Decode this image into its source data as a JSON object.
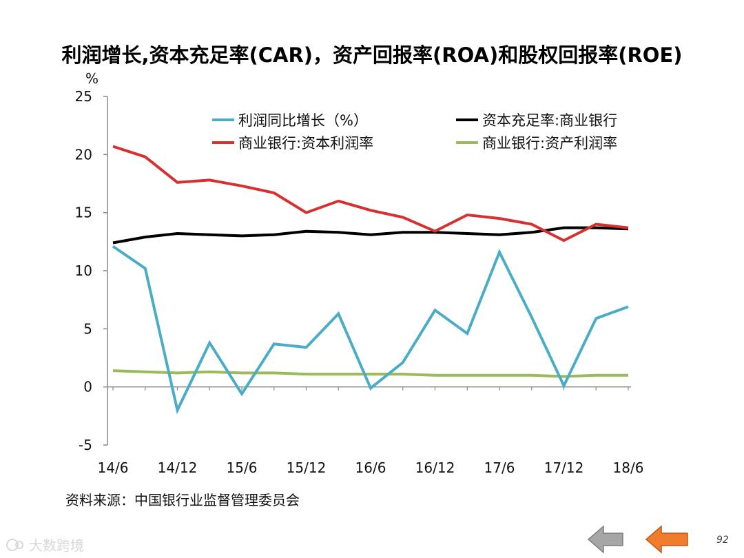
{
  "chart_data": {
    "type": "line",
    "title": "利润增长,资本充足率(CAR)，资产回报率(ROA)和股权回报率(ROE)",
    "ylabel": "%",
    "xlabel": "",
    "ylim": [
      -5,
      25
    ],
    "yticks": [
      -5,
      0,
      5,
      10,
      15,
      20,
      25
    ],
    "x": [
      "14/6",
      "14/9",
      "14/12",
      "15/3",
      "15/6",
      "15/9",
      "15/12",
      "16/3",
      "16/6",
      "16/9",
      "16/12",
      "17/3",
      "17/6",
      "17/9",
      "17/12",
      "18/3",
      "18/6"
    ],
    "xtick_labels": [
      "14/6",
      "14/12",
      "15/6",
      "15/12",
      "16/6",
      "16/12",
      "17/6",
      "17/12",
      "18/6"
    ],
    "grid": false,
    "legend_position": "top",
    "series": [
      {
        "name": "利润同比增长（%）",
        "color": "#4bacc6",
        "values": [
          12.1,
          10.2,
          -2.0,
          3.8,
          -0.6,
          3.7,
          3.4,
          6.3,
          -0.1,
          2.1,
          6.6,
          4.6,
          11.6,
          6.0,
          0.1,
          5.9,
          6.9
        ]
      },
      {
        "name": "资本充足率:商业银行",
        "color": "#000000",
        "values": [
          12.4,
          12.9,
          13.2,
          13.1,
          13.0,
          13.1,
          13.4,
          13.3,
          13.1,
          13.3,
          13.3,
          13.2,
          13.1,
          13.3,
          13.7,
          13.7,
          13.6
        ]
      },
      {
        "name": "商业银行:资本利润率",
        "color": "#d63030",
        "values": [
          20.7,
          19.8,
          17.6,
          17.8,
          17.3,
          16.7,
          15.0,
          16.0,
          15.2,
          14.6,
          13.4,
          14.8,
          14.5,
          14.0,
          12.6,
          14.0,
          13.7
        ]
      },
      {
        "name": "商业银行:资产利润率",
        "color": "#9bbb59",
        "values": [
          1.4,
          1.3,
          1.2,
          1.3,
          1.2,
          1.2,
          1.1,
          1.1,
          1.1,
          1.1,
          1.0,
          1.0,
          1.0,
          1.0,
          0.9,
          1.0,
          1.0
        ]
      }
    ]
  },
  "source_text": "资料来源：中国银行业监督管理委员会",
  "watermark_text": "大数跨境",
  "page_number": "92",
  "nav": {
    "prev_icon": "left-arrow-icon",
    "next_icon": "right-arrow-icon",
    "prev_color": "#a6a6a6",
    "next_color": "#f07c2c"
  }
}
